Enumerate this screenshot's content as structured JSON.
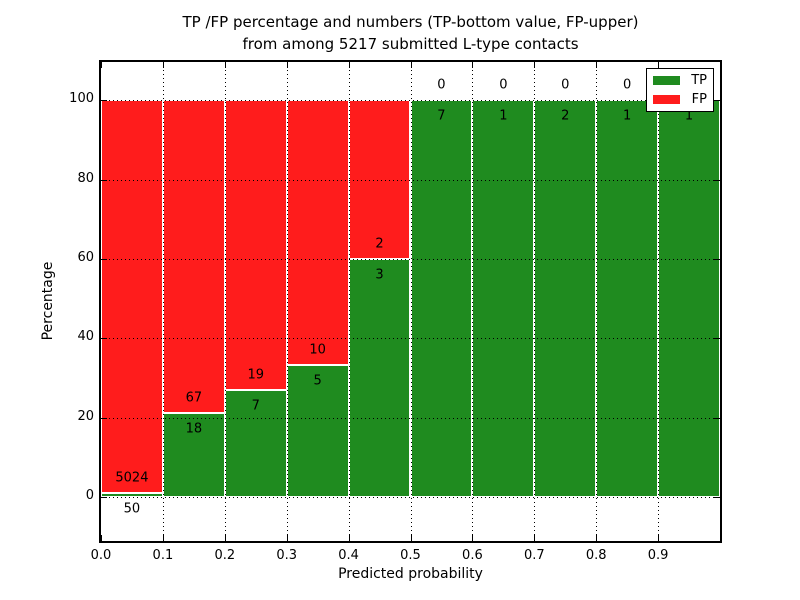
{
  "chart_data": {
    "type": "bar",
    "stacked_percentage": true,
    "title_line1": "TP /FP percentage and numbers (TP-bottom value, FP-upper)",
    "title_line2": "from among 5217 submitted L-type contacts",
    "xlabel": "Predicted probability",
    "ylabel": "Percentage",
    "total_submitted": 5217,
    "x_tick_labels": [
      "0.0",
      "0.1",
      "0.2",
      "0.3",
      "0.4",
      "0.5",
      "0.6",
      "0.7",
      "0.8",
      "0.9"
    ],
    "x_tick_values": [
      0,
      0.1,
      0.2,
      0.3,
      0.4,
      0.5,
      0.6,
      0.7,
      0.8,
      0.9
    ],
    "y_ticks": [
      0,
      20,
      40,
      60,
      80,
      100
    ],
    "xlim": [
      0,
      1
    ],
    "ylim": [
      -11,
      109.6
    ],
    "grid_style": "dotted",
    "colors": {
      "tp": "#1f8b1f",
      "fp": "#ff1c1c",
      "bar_edge": "#ffffff",
      "text": "#000000"
    },
    "legend": {
      "position": "upper-right",
      "entries": [
        {
          "label": "TP",
          "series": "tp"
        },
        {
          "label": "FP",
          "series": "fp"
        }
      ]
    },
    "bins": [
      {
        "x_start": 0.0,
        "x_end": 0.1,
        "tp": 50,
        "fp": 5024,
        "tp_pct": 0.99
      },
      {
        "x_start": 0.1,
        "x_end": 0.2,
        "tp": 18,
        "fp": 67,
        "tp_pct": 21.18
      },
      {
        "x_start": 0.2,
        "x_end": 0.3,
        "tp": 7,
        "fp": 19,
        "tp_pct": 26.92
      },
      {
        "x_start": 0.3,
        "x_end": 0.4,
        "tp": 5,
        "fp": 10,
        "tp_pct": 33.33
      },
      {
        "x_start": 0.4,
        "x_end": 0.5,
        "tp": 3,
        "fp": 2,
        "tp_pct": 60.0
      },
      {
        "x_start": 0.5,
        "x_end": 0.6,
        "tp": 7,
        "fp": 0,
        "tp_pct": 100.0
      },
      {
        "x_start": 0.6,
        "x_end": 0.7,
        "tp": 1,
        "fp": 0,
        "tp_pct": 100.0
      },
      {
        "x_start": 0.7,
        "x_end": 0.8,
        "tp": 2,
        "fp": 0,
        "tp_pct": 100.0
      },
      {
        "x_start": 0.8,
        "x_end": 0.9,
        "tp": 1,
        "fp": 0,
        "tp_pct": 100.0
      },
      {
        "x_start": 0.9,
        "x_end": 1.0,
        "tp": 1,
        "fp": 0,
        "tp_pct": 100.0
      }
    ]
  }
}
